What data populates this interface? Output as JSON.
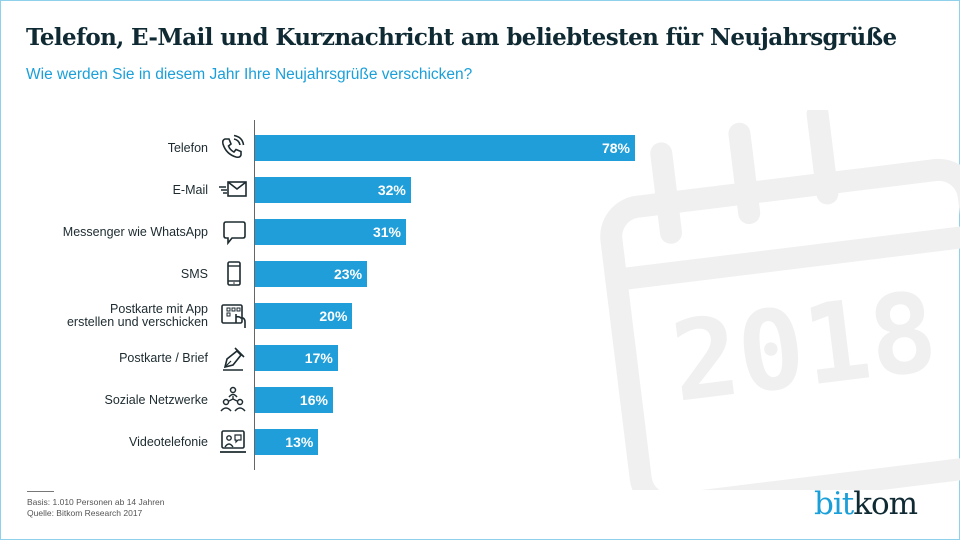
{
  "header": {
    "title": "Telefon, E-Mail und Kurznachricht am beliebtesten für Neujahrsgrüße",
    "subtitle": "Wie werden Sie in diesem Jahr Ihre Neujahrsgrüße verschicken?"
  },
  "background": {
    "decoration": "calendar-icon",
    "year_text": "2018"
  },
  "chart_data": {
    "type": "bar",
    "orientation": "horizontal",
    "title": "Telefon, E-Mail und Kurznachricht am beliebtesten für Neujahrsgrüße",
    "subtitle": "Wie werden Sie in diesem Jahr Ihre Neujahrsgrüße verschicken?",
    "xlabel": "",
    "ylabel": "",
    "unit": "%",
    "xlim": [
      0,
      100
    ],
    "grid": false,
    "bar_color": "#1f9ed9",
    "categories": [
      "Telefon",
      "E-Mail",
      "Messenger wie WhatsApp",
      "SMS",
      "Postkarte mit App\nerstellen und verschicken",
      "Postkarte / Brief",
      "Soziale Netzwerke",
      "Videotelefonie"
    ],
    "values": [
      78,
      32,
      31,
      23,
      20,
      17,
      16,
      13
    ],
    "value_labels": [
      "78%",
      "32%",
      "31%",
      "23%",
      "20%",
      "17%",
      "16%",
      "13%"
    ],
    "icons": [
      "phone-icon",
      "email-icon",
      "chat-bubble-icon",
      "smartphone-icon",
      "tablet-app-icon",
      "pen-icon",
      "network-people-icon",
      "video-call-icon"
    ]
  },
  "footer": {
    "basis": "Basis: 1.010 Personen ab 14 Jahren",
    "source": "Quelle: Bitkom Research 2017"
  },
  "logo": {
    "part1": "bit",
    "part2": "kom",
    "color1": "#1a9fd9",
    "color2": "#0f2a33"
  }
}
